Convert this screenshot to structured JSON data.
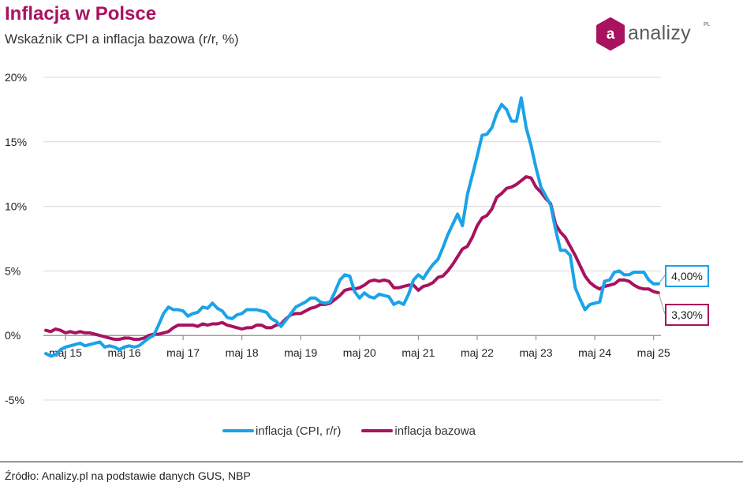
{
  "header": {
    "title": "Inflacja w Polsce",
    "subtitle": "Wskaźnik CPI a inflacja bazowa (r/r, %)"
  },
  "logo": {
    "text": "analizy",
    "suffix": "PL",
    "badge_letter": "a",
    "color": "#a8125f"
  },
  "legend": {
    "items": [
      {
        "label": "inflacja (CPI, r/r)",
        "color": "#1aa3e8"
      },
      {
        "label": "inflacja bazowa",
        "color": "#a8125f"
      }
    ]
  },
  "callouts": {
    "cpi_last": "4,00%",
    "core_last": "3,30%"
  },
  "source": "Źródło: Analizy.pl na podstawie danych GUS, NBP",
  "chart_data": {
    "type": "line",
    "x_start": "2015-01",
    "x_end": "2025-06",
    "xticks": [
      "maj 15",
      "maj 16",
      "maj 17",
      "maj 18",
      "maj 19",
      "maj 20",
      "maj 21",
      "maj 22",
      "maj 23",
      "maj 24",
      "maj 25"
    ],
    "yticks": [
      "20%",
      "15%",
      "10%",
      "5%",
      "0%",
      "-5%"
    ],
    "ylim": [
      -5,
      20
    ],
    "grid": true,
    "legend_position": "bottom",
    "series": [
      {
        "name": "inflacja (CPI, r/r)",
        "color": "#1aa3e8",
        "values": [
          -1.4,
          -1.6,
          -1.5,
          -1.1,
          -0.9,
          -0.8,
          -0.7,
          -0.6,
          -0.8,
          -0.7,
          -0.6,
          -0.5,
          -0.9,
          -0.8,
          -0.9,
          -1.1,
          -0.9,
          -0.8,
          -0.9,
          -0.8,
          -0.5,
          -0.2,
          0.0,
          0.8,
          1.7,
          2.2,
          2.0,
          2.0,
          1.9,
          1.5,
          1.7,
          1.8,
          2.2,
          2.1,
          2.5,
          2.1,
          1.9,
          1.4,
          1.3,
          1.6,
          1.7,
          2.0,
          2.0,
          2.0,
          1.9,
          1.8,
          1.3,
          1.1,
          0.7,
          1.2,
          1.7,
          2.2,
          2.4,
          2.6,
          2.9,
          2.9,
          2.6,
          2.5,
          2.6,
          3.4,
          4.3,
          4.7,
          4.6,
          3.4,
          2.9,
          3.3,
          3.0,
          2.9,
          3.2,
          3.1,
          3.0,
          2.4,
          2.6,
          2.4,
          3.2,
          4.3,
          4.7,
          4.4,
          5.0,
          5.5,
          5.9,
          6.8,
          7.8,
          8.6,
          9.4,
          8.5,
          10.9,
          12.4,
          13.9,
          15.5,
          15.6,
          16.1,
          17.2,
          17.9,
          17.5,
          16.6,
          16.6,
          18.4,
          16.1,
          14.7,
          13.0,
          11.5,
          10.8,
          10.1,
          8.2,
          6.6,
          6.6,
          6.2,
          3.7,
          2.8,
          2.0,
          2.4,
          2.5,
          2.6,
          4.2,
          4.3,
          4.9,
          5.0,
          4.7,
          4.7,
          4.9,
          4.9,
          4.9,
          4.3,
          4.0,
          4.0
        ]
      },
      {
        "name": "inflacja bazowa",
        "color": "#a8125f",
        "values": [
          0.4,
          0.3,
          0.5,
          0.4,
          0.2,
          0.3,
          0.2,
          0.3,
          0.2,
          0.2,
          0.1,
          0.0,
          -0.1,
          -0.2,
          -0.3,
          -0.3,
          -0.2,
          -0.2,
          -0.3,
          -0.3,
          -0.2,
          0.0,
          0.1,
          0.1,
          0.2,
          0.3,
          0.6,
          0.8,
          0.8,
          0.8,
          0.8,
          0.7,
          0.9,
          0.8,
          0.9,
          0.9,
          1.0,
          0.8,
          0.7,
          0.6,
          0.5,
          0.6,
          0.6,
          0.8,
          0.8,
          0.6,
          0.6,
          0.8,
          0.9,
          1.3,
          1.6,
          1.7,
          1.7,
          1.9,
          2.1,
          2.2,
          2.4,
          2.4,
          2.5,
          2.8,
          3.1,
          3.5,
          3.6,
          3.6,
          3.7,
          3.9,
          4.2,
          4.3,
          4.2,
          4.3,
          4.2,
          3.7,
          3.7,
          3.8,
          3.9,
          3.9,
          3.5,
          3.8,
          3.9,
          4.1,
          4.5,
          4.6,
          5.0,
          5.5,
          6.1,
          6.7,
          6.9,
          7.6,
          8.5,
          9.1,
          9.3,
          9.8,
          10.7,
          11.0,
          11.4,
          11.5,
          11.7,
          12.0,
          12.3,
          12.2,
          11.5,
          11.1,
          10.6,
          10.2,
          8.6,
          8.0,
          7.6,
          6.9,
          6.2,
          5.4,
          4.6,
          4.1,
          3.8,
          3.6,
          3.8,
          3.9,
          4.0,
          4.3,
          4.3,
          4.2,
          3.9,
          3.7,
          3.6,
          3.6,
          3.4,
          3.3
        ]
      }
    ]
  }
}
